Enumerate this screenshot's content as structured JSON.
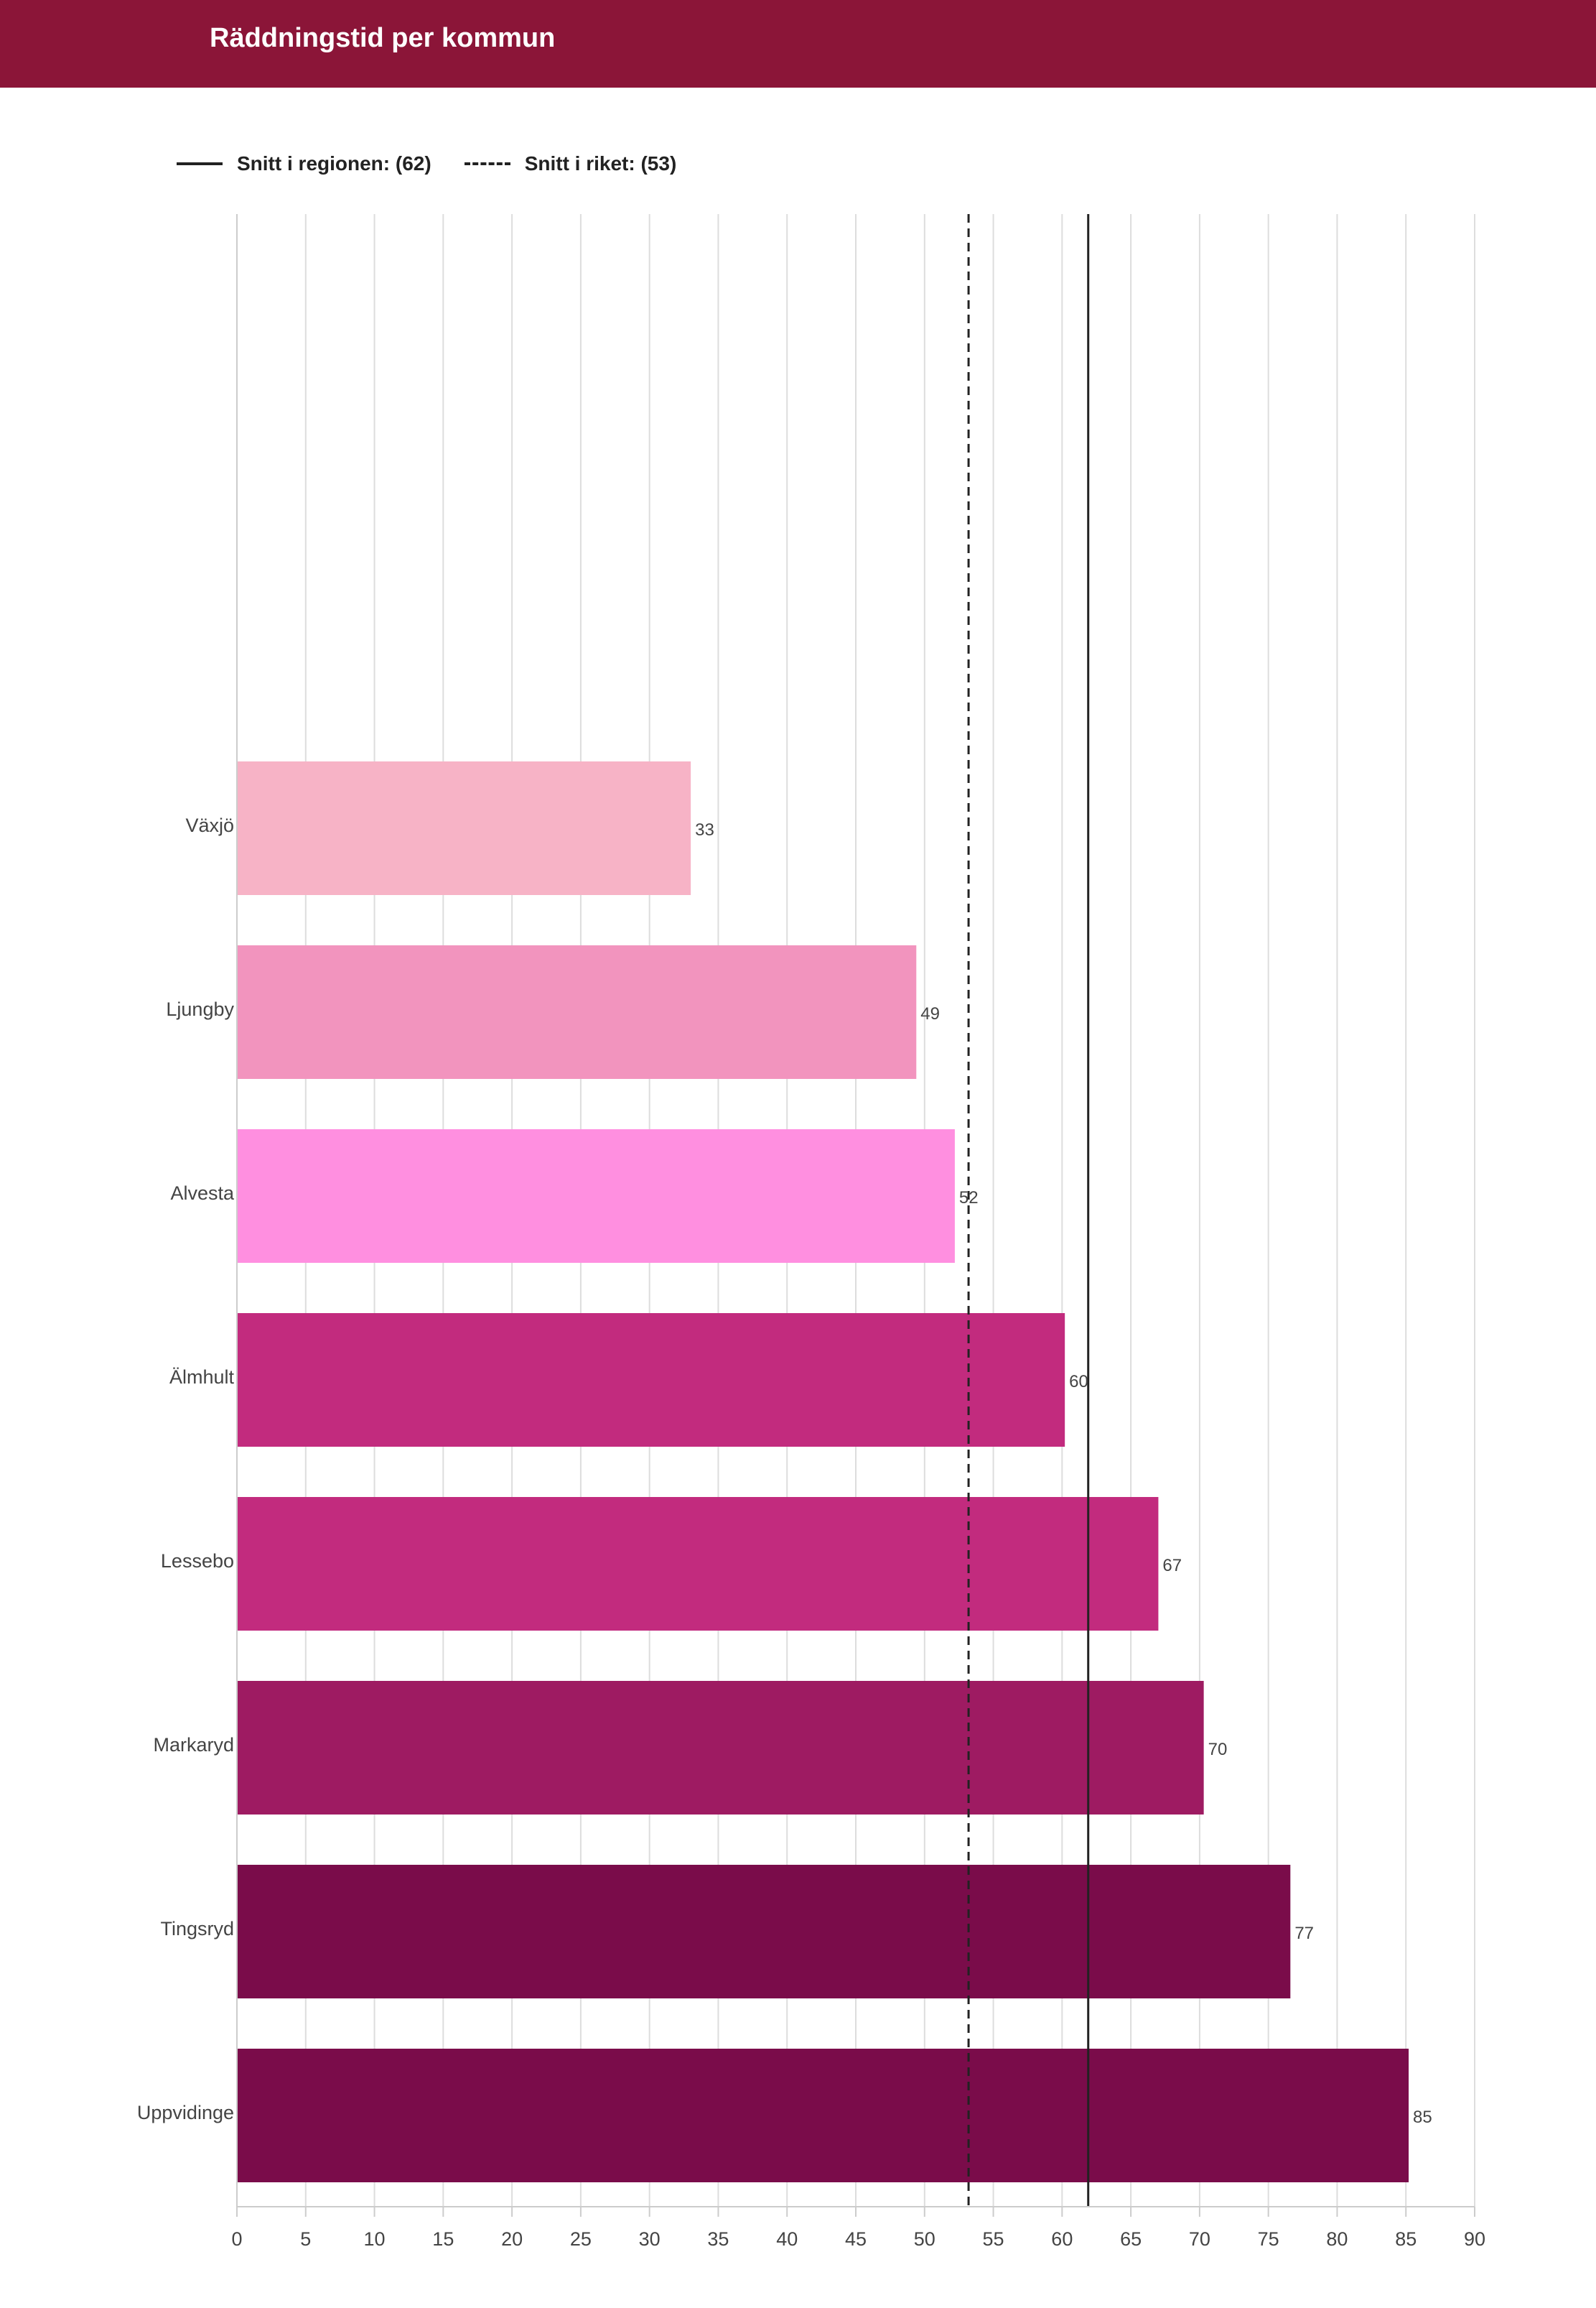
{
  "header": {
    "title": "Räddningstid per kommun"
  },
  "legend": {
    "items": [
      {
        "label": "Snitt i regionen: (62)",
        "style": "solid"
      },
      {
        "label": "Snitt i riket: (53)",
        "style": "dashed"
      }
    ]
  },
  "colors": {
    "header_bg": "#8b1538",
    "grid": "#dddddd",
    "text": "#444444",
    "reference_lines": "#222222"
  },
  "chart_data": {
    "type": "bar",
    "orientation": "horizontal",
    "title": "Räddningstid per kommun",
    "xlabel": "",
    "ylabel": "",
    "xlim": [
      0,
      90
    ],
    "x_ticks": [
      0,
      5,
      10,
      15,
      20,
      25,
      30,
      35,
      40,
      45,
      50,
      55,
      60,
      65,
      70,
      75,
      80,
      85,
      90
    ],
    "grid": true,
    "legend_position": "top-left",
    "categories": [
      "Växjö",
      "Ljungby",
      "Alvesta",
      "Älmhult",
      "Lessebo",
      "Markaryd",
      "Tingsryd",
      "Uppvidinge"
    ],
    "values": [
      33,
      49,
      52,
      60,
      67,
      70,
      77,
      85
    ],
    "plotted_values": [
      33,
      49.4,
      52.2,
      60.2,
      67,
      70.3,
      76.6,
      85.2
    ],
    "bar_colors": [
      "#f7b3c6",
      "#f294be",
      "#ff8fe0",
      "#c22b7e",
      "#c22b7e",
      "#9e1b62",
      "#7a0c4a",
      "#7a0c4a"
    ],
    "data_labels": [
      "33",
      "49",
      "52",
      "60",
      "67",
      "70",
      "77",
      "85"
    ],
    "reference_lines": [
      {
        "label": "Snitt i regionen: (62)",
        "value": 61.9,
        "style": "solid"
      },
      {
        "label": "Snitt i riket: (53)",
        "value": 53.2,
        "style": "dashed"
      }
    ]
  }
}
